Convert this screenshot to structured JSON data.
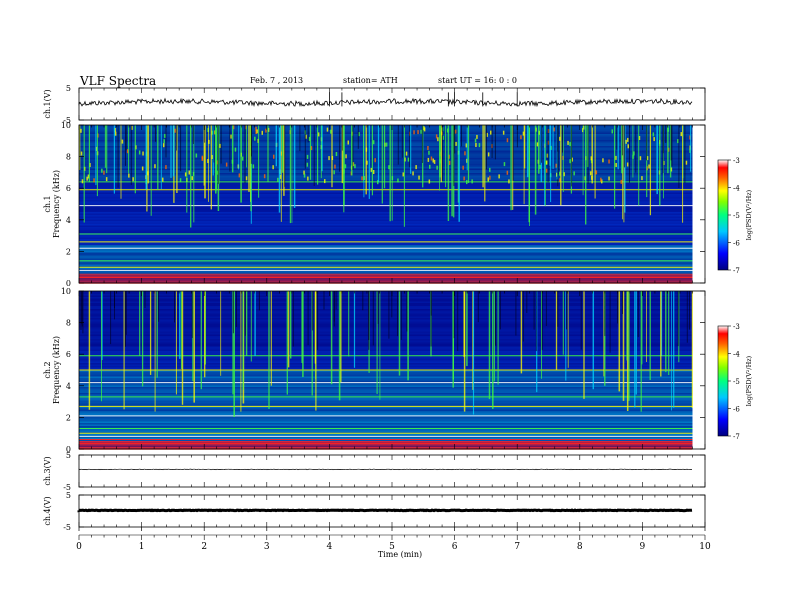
{
  "header": {
    "title": "VLF  Spectra",
    "date": "Feb. 7  , 2013",
    "station": "station= ATH",
    "start": "start  UT  =    16: 0   : 0"
  },
  "chart_data": [
    {
      "type": "line",
      "panel": "ch1-waveform",
      "ylabel": "ch.1(V)",
      "yticks": [
        "5",
        "-5"
      ],
      "ylim": [
        -5,
        5
      ],
      "xlim": [
        0,
        10
      ],
      "trace_end_min": 9.8,
      "level": 0.5,
      "spikes_at_min": [
        4.0,
        4.2,
        5.9,
        6.0,
        6.45,
        7.0
      ]
    },
    {
      "type": "heatmap",
      "panel": "ch1-spectrogram",
      "ylabel": "Frequency  (kHz)",
      "channel_label": "ch.1",
      "yticks": [
        "10",
        "8",
        "6",
        "4",
        "2",
        "0"
      ],
      "ylim": [
        0,
        10
      ],
      "xlim": [
        0,
        10
      ],
      "colorbar": {
        "label": "log(PSD(V²/Hz)",
        "ticks": [
          "-3",
          "-4",
          "-5",
          "-6",
          "-7"
        ],
        "range": [
          -7,
          -3
        ]
      }
    },
    {
      "type": "heatmap",
      "panel": "ch2-spectrogram",
      "ylabel": "Frequency  (kHz)",
      "channel_label": "ch.2",
      "yticks": [
        "10",
        "8",
        "6",
        "4",
        "2",
        "0"
      ],
      "ylim": [
        0,
        10
      ],
      "xlim": [
        0,
        10
      ],
      "colorbar": {
        "label": "log(PSD(V²/Hz)",
        "ticks": [
          "-3",
          "-4",
          "-5",
          "-6",
          "-7"
        ],
        "range": [
          -7,
          -3
        ]
      }
    },
    {
      "type": "line",
      "panel": "ch3-waveform",
      "ylabel": "ch.3(V)",
      "yticks": [
        "5",
        "-5"
      ],
      "ylim": [
        -5,
        5
      ],
      "xlim": [
        0,
        10
      ],
      "trace_end_min": 9.8,
      "level": 0.5
    },
    {
      "type": "line",
      "panel": "ch4-waveform",
      "ylabel": "ch.4(V)",
      "yticks": [
        "5",
        "-5"
      ],
      "ylim": [
        -5,
        5
      ],
      "xlim": [
        0,
        10
      ],
      "trace_end_min": 9.8,
      "level": 0.2
    }
  ],
  "xaxis": {
    "label": "Time  (min)",
    "ticks": [
      "0",
      "1",
      "2",
      "3",
      "4",
      "5",
      "6",
      "7",
      "8",
      "9",
      "10"
    ],
    "range": [
      0,
      10
    ]
  },
  "colors": {
    "background": "#00007f",
    "noise_blue": "#0050ff",
    "cyan": "#00d8ff",
    "green": "#40ff40",
    "yellow": "#ffff00",
    "red": "#ff2020"
  }
}
